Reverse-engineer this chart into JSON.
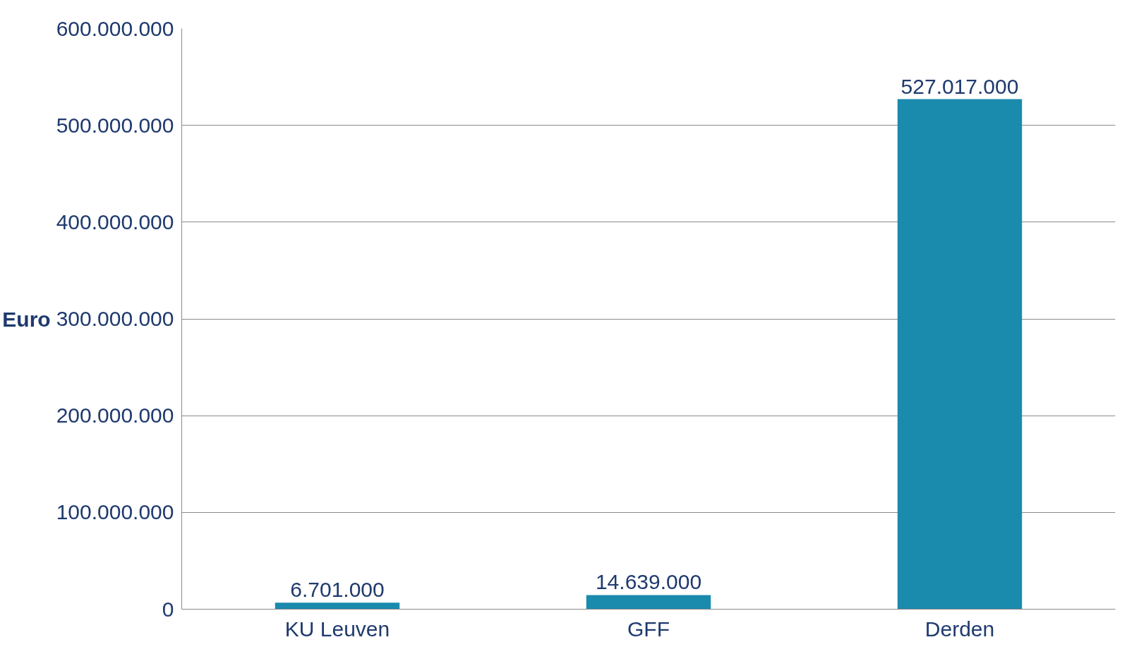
{
  "chart_data": {
    "type": "bar",
    "ylabel": "Euro",
    "categories": [
      "KU Leuven",
      "GFF",
      "Derden"
    ],
    "values": [
      6701000,
      14639000,
      527017000
    ],
    "value_labels": [
      "6.701.000",
      "14.639.000",
      "527.017.000"
    ],
    "color": "#1a8aad",
    "ylim": [
      0,
      600000000
    ],
    "yticks": [
      0,
      {
        "value": 100000000,
        "label": "100.000.000"
      },
      {
        "value": 200000000,
        "label": "200.000.000"
      },
      {
        "value": 300000000,
        "label": "300.000.000"
      },
      {
        "value": 400000000,
        "label": "400.000.000"
      },
      {
        "value": 500000000,
        "label": "500.000.000"
      },
      {
        "value": 600000000,
        "label": "600.000.000"
      }
    ],
    "grid": "y"
  }
}
